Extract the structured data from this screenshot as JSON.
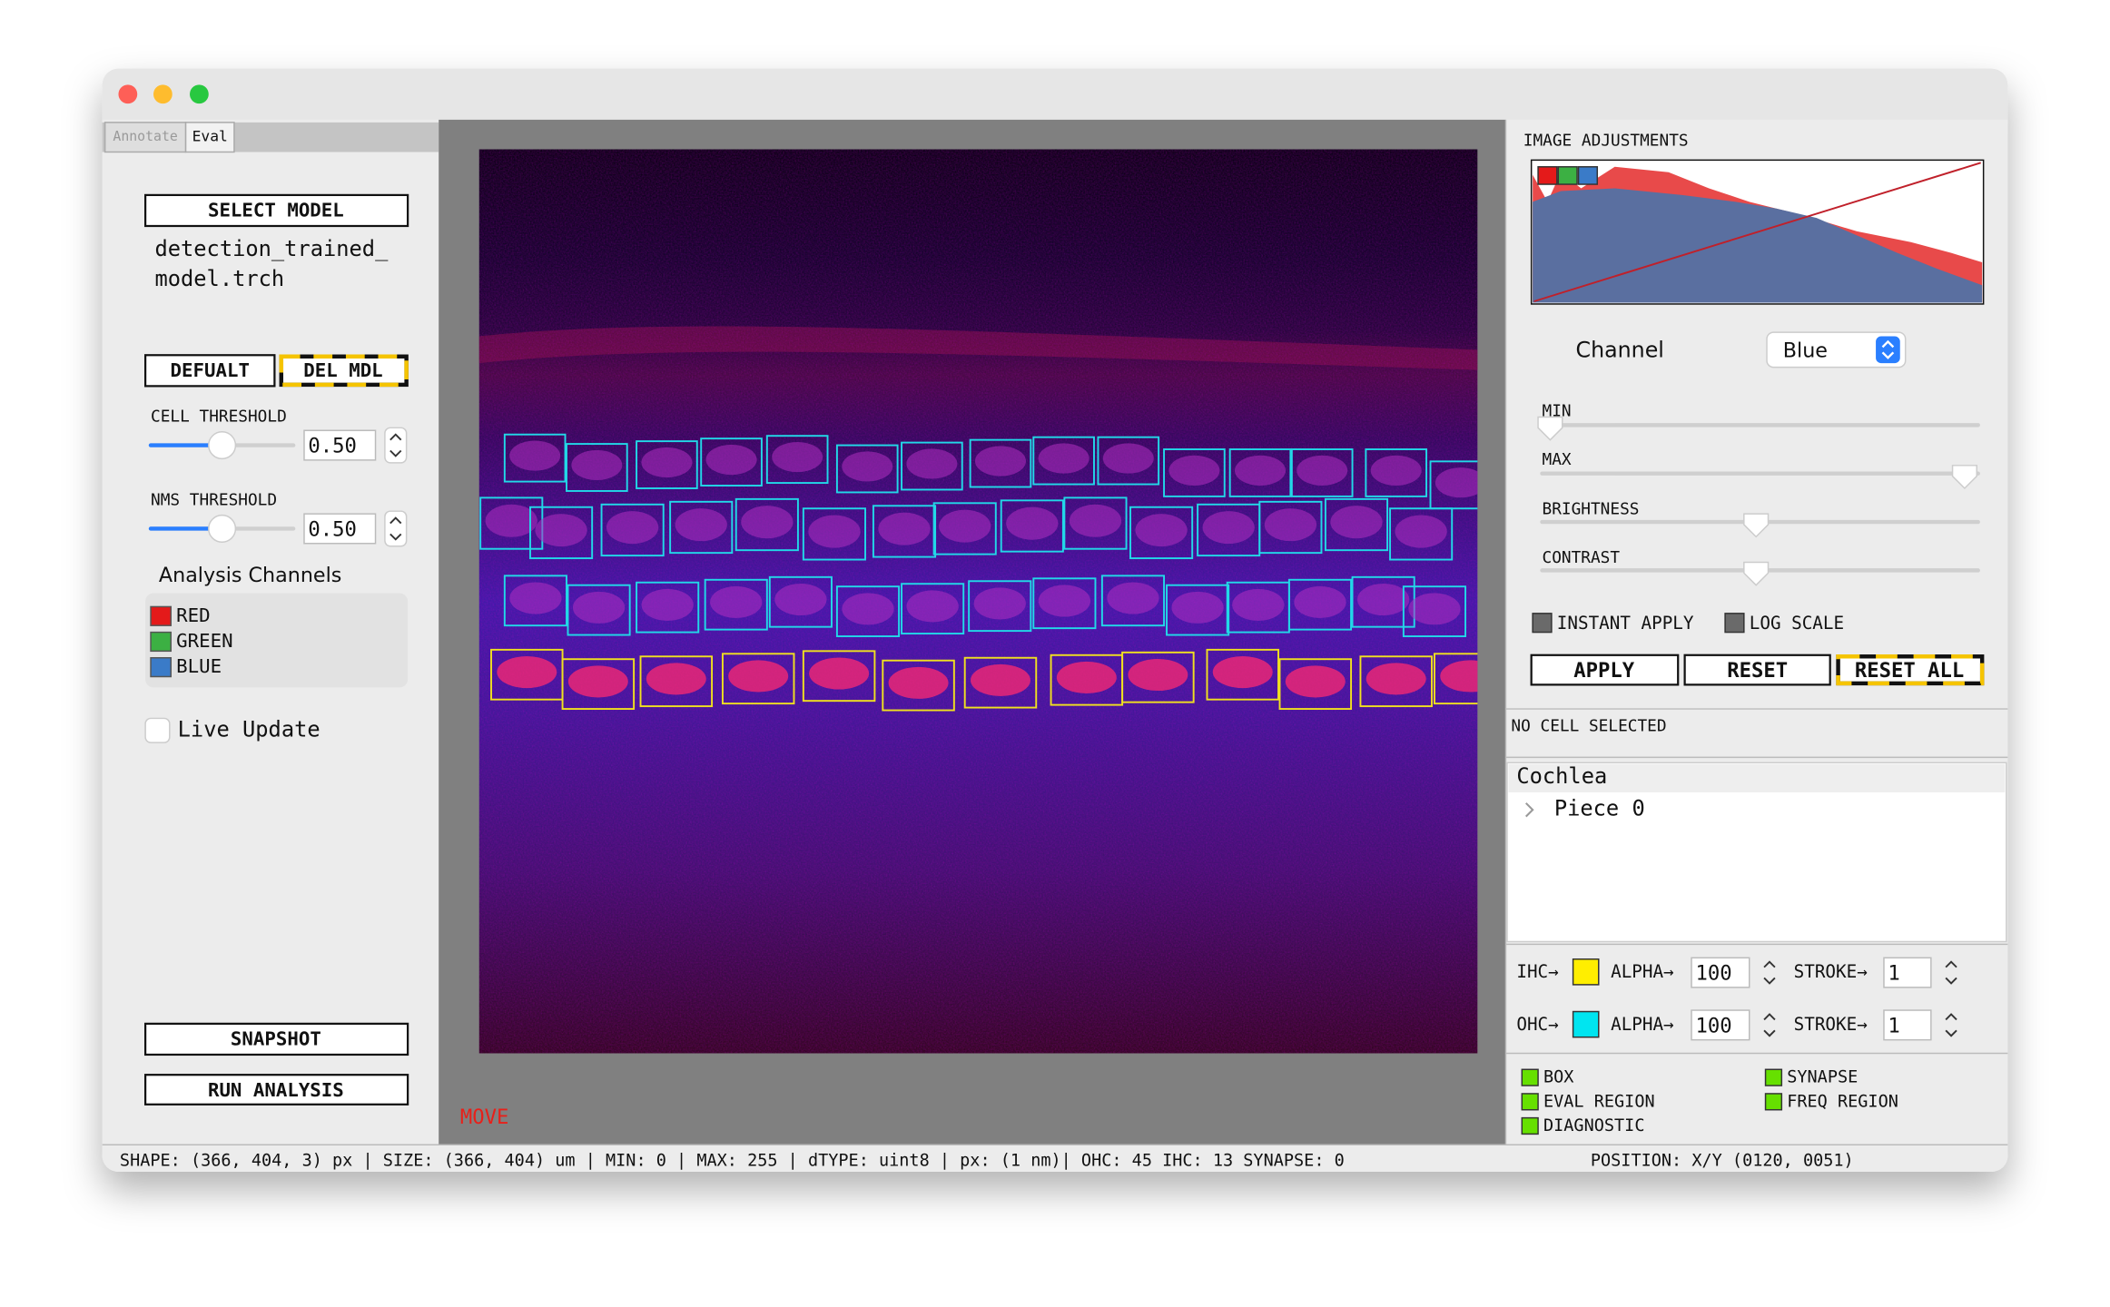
{
  "window": {
    "tabs": [
      "Annotate",
      "Eval"
    ]
  },
  "left_panel": {
    "select_model": "SELECT MODEL",
    "model_name_lines": [
      "detection_trained_",
      "model.trch"
    ],
    "default_button": "DEFUALT",
    "delete_button": "DEL MDL",
    "cell_threshold": {
      "label": "CELL THRESHOLD",
      "value": "0.50"
    },
    "nms_threshold": {
      "label": "NMS THRESHOLD",
      "value": "0.50"
    },
    "analysis_channels": {
      "label": "Analysis Channels",
      "channels": [
        "RED",
        "GREEN",
        "BLUE"
      ]
    },
    "live_update": "Live Update",
    "snapshot": "SNAPSHOT",
    "run_analysis": "RUN ANALYSIS"
  },
  "canvas": {
    "mode": "MOVE"
  },
  "right_panel": {
    "title": "IMAGE ADJUSTMENTS",
    "channel_label": "Channel",
    "channel_value": "Blue",
    "sliders": [
      "MIN",
      "MAX",
      "BRIGHTNESS",
      "CONTRAST"
    ],
    "instant_apply": "INSTANT APPLY",
    "log_scale": "LOG SCALE",
    "buttons": [
      "APPLY",
      "RESET",
      "RESET ALL"
    ],
    "selection": "NO CELL SELECTED",
    "tree": {
      "root": "Cochlea",
      "child": "Piece 0"
    },
    "styles": [
      {
        "label": "IHC→",
        "alpha_label": "ALPHA→",
        "alpha": "100",
        "stroke_label": "STROKE→",
        "stroke": "1"
      },
      {
        "label": "OHC→",
        "alpha_label": "ALPHA→",
        "alpha": "100",
        "stroke_label": "STROKE→",
        "stroke": "1"
      }
    ],
    "toggles": [
      "BOX",
      "SYNAPSE",
      "EVAL REGION",
      "FREQ REGION",
      "DIAGNOSTIC"
    ]
  },
  "status_bar": {
    "info": "SHAPE: (366, 404, 3) px | SIZE: (366, 404) um | MIN: 0 | MAX: 255 | dTYPE: uint8 | px: (1 nm)| OHC: 45 IHC: 13 SYNAPSE: 0",
    "position": "POSITION: X/Y (0120, 0051)"
  }
}
